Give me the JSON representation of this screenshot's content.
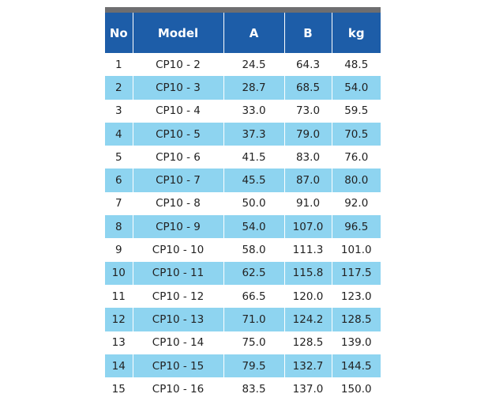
{
  "table": {
    "headers": [
      "No",
      "Model",
      "A",
      "B",
      "kg"
    ],
    "rows": [
      [
        "1",
        "CP10 - 2",
        "24.5",
        "64.3",
        "48.5"
      ],
      [
        "2",
        "CP10 - 3",
        "28.7",
        "68.5",
        "54.0"
      ],
      [
        "3",
        "CP10 - 4",
        "33.0",
        "73.0",
        "59.5"
      ],
      [
        "4",
        "CP10 - 5",
        "37.3",
        "79.0",
        "70.5"
      ],
      [
        "5",
        "CP10 - 6",
        "41.5",
        "83.0",
        "76.0"
      ],
      [
        "6",
        "CP10 - 7",
        "45.5",
        "87.0",
        "80.0"
      ],
      [
        "7",
        "CP10 - 8",
        "50.0",
        "91.0",
        "92.0"
      ],
      [
        "8",
        "CP10 - 9",
        "54.0",
        "107.0",
        "96.5"
      ],
      [
        "9",
        "CP10 - 10",
        "58.0",
        "111.3",
        "101.0"
      ],
      [
        "10",
        "CP10 - 11",
        "62.5",
        "115.8",
        "117.5"
      ],
      [
        "11",
        "CP10 - 12",
        "66.5",
        "120.0",
        "123.0"
      ],
      [
        "12",
        "CP10 - 13",
        "71.0",
        "124.2",
        "128.5"
      ],
      [
        "13",
        "CP10 - 14",
        "75.0",
        "128.5",
        "139.0"
      ],
      [
        "14",
        "CP10 - 15",
        "79.5",
        "132.7",
        "144.5"
      ],
      [
        "15",
        "CP10 - 16",
        "83.5",
        "137.0",
        "150.0"
      ]
    ]
  }
}
